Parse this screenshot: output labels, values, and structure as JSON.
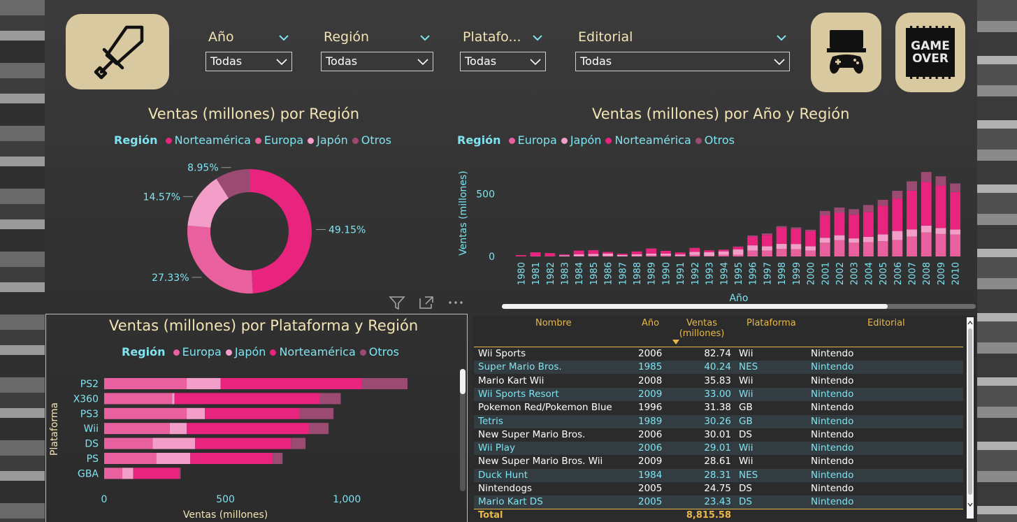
{
  "filters": [
    {
      "label": "Año",
      "value": "Todas"
    },
    {
      "label": "Región",
      "value": "Todas"
    },
    {
      "label": "Platafo...",
      "value": "Todas"
    },
    {
      "label": "Editorial",
      "value": "Todas"
    }
  ],
  "tiles": {
    "game_over_text_1": "GAME",
    "game_over_text_2": "OVER"
  },
  "colors": {
    "norteamerica": "#e8247f",
    "europa": "#e9609e",
    "japon": "#f29ec9",
    "otros": "#9b4a72",
    "accent_text": "#7fe3f0",
    "title": "#f3e4b5",
    "table_header": "#e8b84a"
  },
  "chart_data": [
    {
      "type": "pie",
      "title": "Ventas (millones) por Región",
      "legend_title": "Región",
      "legend": [
        "Norteamérica",
        "Europa",
        "Japón",
        "Otros"
      ],
      "slices": [
        {
          "name": "Norteamérica",
          "value": 49.15,
          "label": "49.15%"
        },
        {
          "name": "Europa",
          "value": 27.33,
          "label": "27.33%"
        },
        {
          "name": "Japón",
          "value": 14.57,
          "label": "14.57%"
        },
        {
          "name": "Otros",
          "value": 8.95,
          "label": "8.95%"
        }
      ]
    },
    {
      "type": "bar",
      "stacked": true,
      "title": "Ventas (millones) por Año y Región",
      "legend_title": "Región",
      "xlabel": "Año",
      "ylabel": "Ventas (millones)",
      "yticks": [
        "0",
        "500"
      ],
      "ylim": [
        0,
        700
      ],
      "categories": [
        "1980",
        "1981",
        "1982",
        "1983",
        "1984",
        "1985",
        "1986",
        "1987",
        "1988",
        "1989",
        "1990",
        "1991",
        "1992",
        "1993",
        "1994",
        "1995",
        "1996",
        "1997",
        "1998",
        "1999",
        "2000",
        "2001",
        "2002",
        "2003",
        "2004",
        "2005",
        "2006",
        "2007",
        "2008",
        "2009",
        "2010"
      ],
      "series": [
        {
          "name": "Europa",
          "values": [
            1,
            3,
            2,
            1,
            2,
            5,
            3,
            1,
            3,
            8,
            8,
            4,
            12,
            4,
            14,
            14,
            47,
            47,
            61,
            58,
            47,
            110,
            130,
            110,
            115,
            122,
            132,
            160,
            192,
            180,
            176
          ]
        },
        {
          "name": "Japón",
          "values": [
            0,
            0,
            0,
            8,
            15,
            15,
            20,
            11,
            15,
            15,
            15,
            12,
            25,
            30,
            27,
            42,
            42,
            35,
            40,
            42,
            35,
            40,
            40,
            35,
            42,
            55,
            72,
            57,
            55,
            48,
            40
          ]
        },
        {
          "name": "Norteamérica",
          "values": [
            10,
            30,
            25,
            7,
            30,
            30,
            13,
            10,
            22,
            40,
            22,
            16,
            30,
            15,
            12,
            20,
            70,
            90,
            130,
            120,
            120,
            180,
            180,
            190,
            200,
            230,
            260,
            310,
            350,
            340,
            300
          ]
        },
        {
          "name": "Otros",
          "values": [
            0,
            0,
            0,
            0,
            0,
            1,
            0,
            0,
            0,
            2,
            0,
            0,
            2,
            0,
            2,
            4,
            9,
            13,
            12,
            13,
            12,
            35,
            42,
            44,
            55,
            47,
            62,
            75,
            80,
            74,
            69
          ]
        }
      ]
    },
    {
      "type": "bar",
      "orientation": "horizontal",
      "stacked": true,
      "title": "Ventas (millones) por Plataforma y Región",
      "legend_title": "Región",
      "xlabel": "Ventas (millones)",
      "ylabel": "Plataforma",
      "xticks": [
        "0",
        "500",
        "1,000"
      ],
      "xlim": [
        0,
        1250
      ],
      "categories": [
        "PS2",
        "X360",
        "PS3",
        "Wii",
        "DS",
        "PS",
        "GBA"
      ],
      "series": [
        {
          "name": "Europa",
          "values": [
            340,
            280,
            340,
            270,
            200,
            215,
            75
          ]
        },
        {
          "name": "Japón",
          "values": [
            140,
            10,
            75,
            70,
            175,
            140,
            45
          ]
        },
        {
          "name": "Norteamérica",
          "values": [
            580,
            600,
            390,
            505,
            395,
            340,
            190
          ]
        },
        {
          "name": "Otros",
          "values": [
            190,
            85,
            140,
            80,
            60,
            40,
            5
          ]
        }
      ]
    },
    {
      "type": "table",
      "columns": [
        "Nombre",
        "Año",
        "Ventas (millones)",
        "Plataforma",
        "Editorial"
      ],
      "rows": [
        [
          "Wii Sports",
          "2006",
          "82.74",
          "Wii",
          "Nintendo"
        ],
        [
          "Super Mario Bros.",
          "1985",
          "40.24",
          "NES",
          "Nintendo"
        ],
        [
          "Mario Kart Wii",
          "2008",
          "35.83",
          "Wii",
          "Nintendo"
        ],
        [
          "Wii Sports Resort",
          "2009",
          "33.00",
          "Wii",
          "Nintendo"
        ],
        [
          "Pokemon Red/Pokemon Blue",
          "1996",
          "31.38",
          "GB",
          "Nintendo"
        ],
        [
          "Tetris",
          "1989",
          "30.26",
          "GB",
          "Nintendo"
        ],
        [
          "New Super Mario Bros.",
          "2006",
          "30.01",
          "DS",
          "Nintendo"
        ],
        [
          "Wii Play",
          "2006",
          "29.01",
          "Wii",
          "Nintendo"
        ],
        [
          "New Super Mario Bros. Wii",
          "2009",
          "28.61",
          "Wii",
          "Nintendo"
        ],
        [
          "Duck Hunt",
          "1984",
          "28.31",
          "NES",
          "Nintendo"
        ],
        [
          "Nintendogs",
          "2005",
          "24.75",
          "DS",
          "Nintendo"
        ],
        [
          "Mario Kart DS",
          "2005",
          "23.43",
          "DS",
          "Nintendo"
        ]
      ],
      "total_label": "Total",
      "total_value": "8,815.58"
    }
  ]
}
